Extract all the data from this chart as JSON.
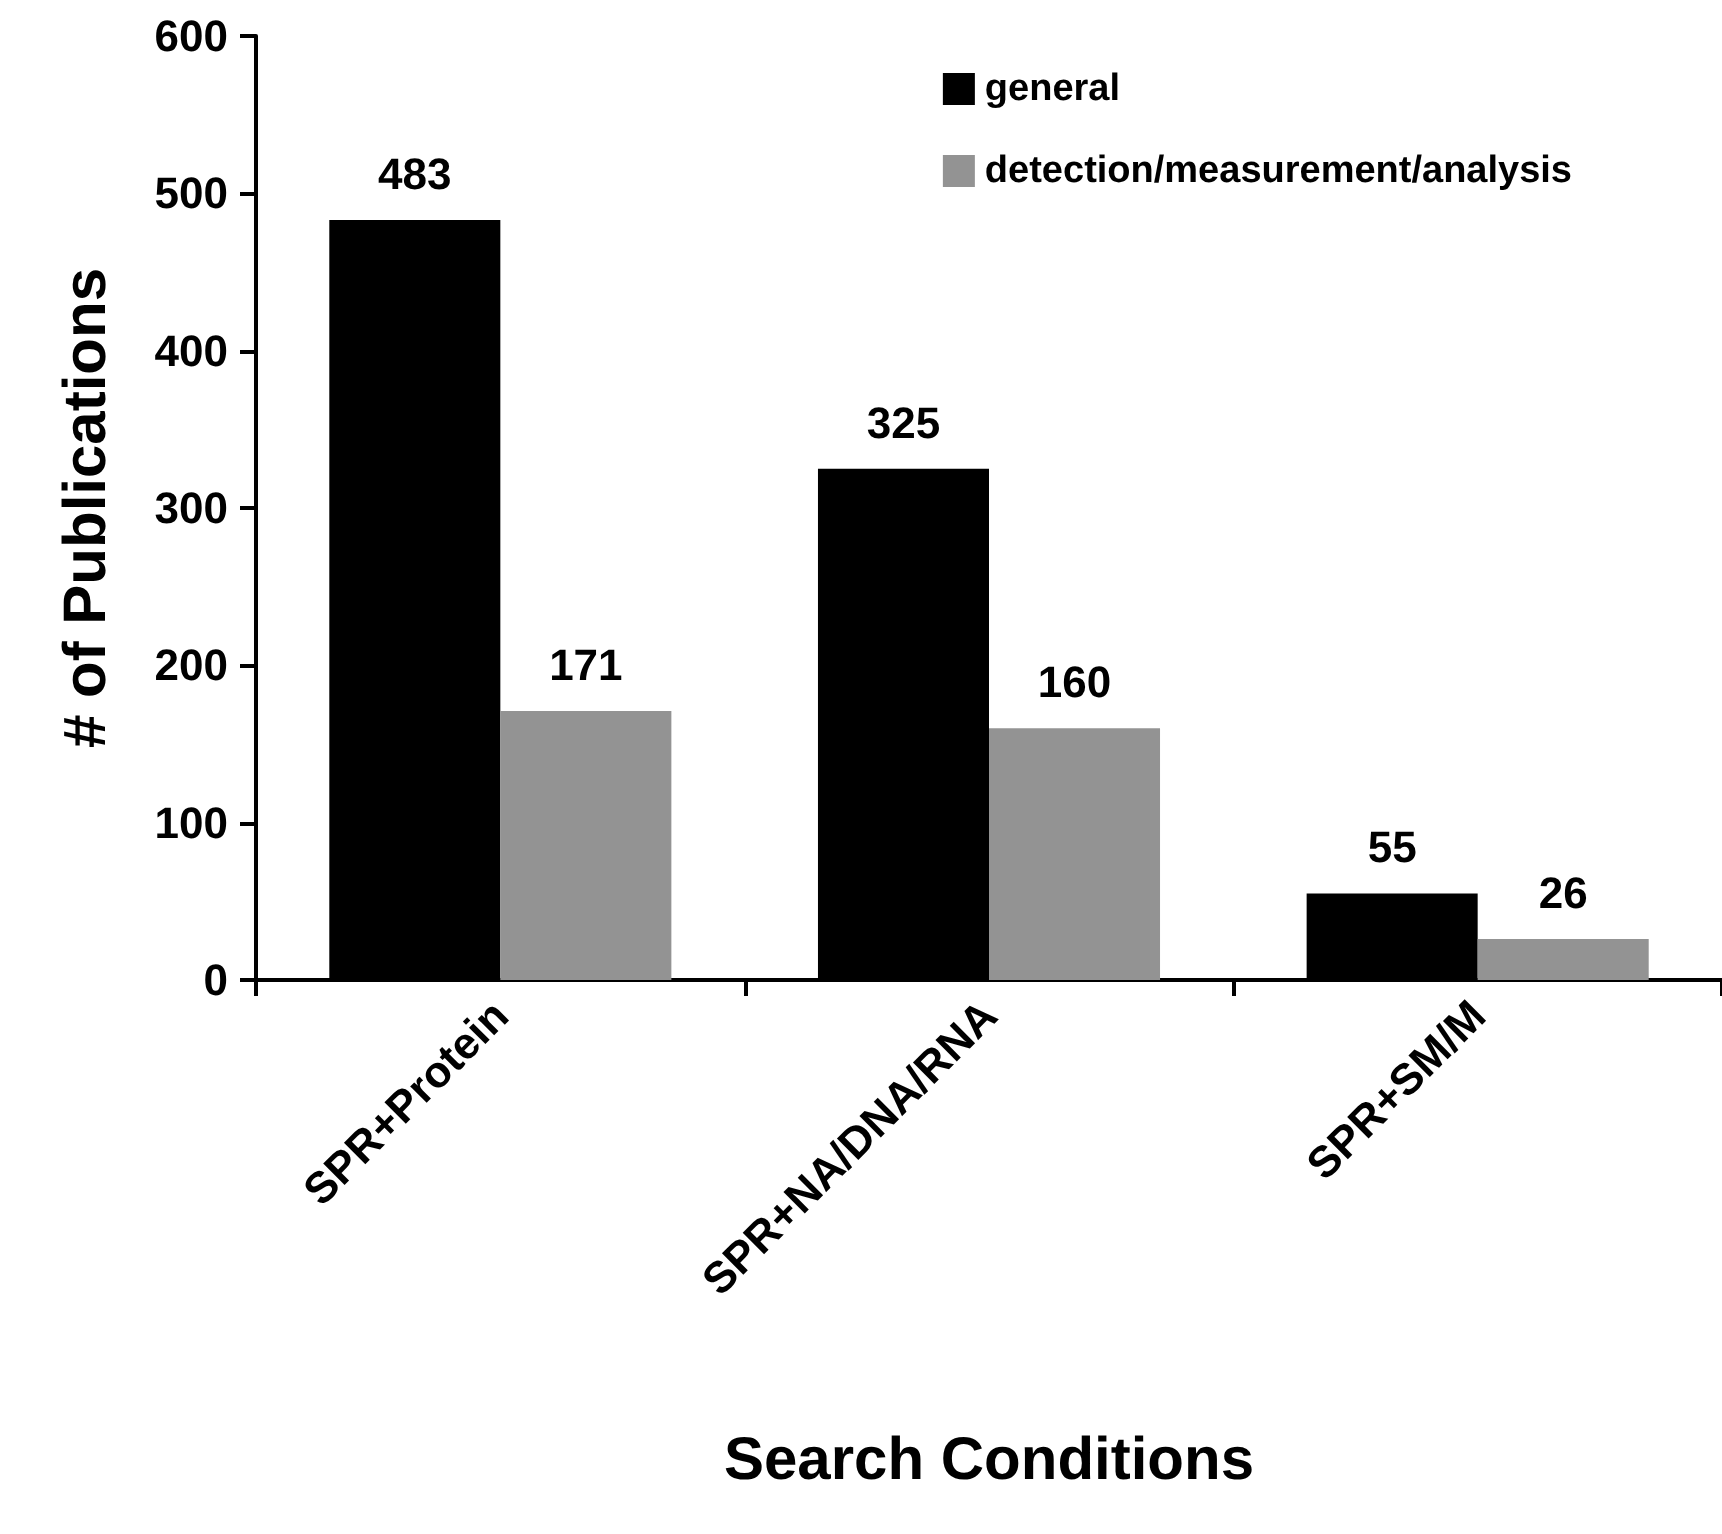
{
  "chart_data": {
    "type": "bar",
    "xlabel": "Search Conditions",
    "ylabel": "# of Publications",
    "categories": [
      "SPR+Protein",
      "SPR+NA/DNA/RNA",
      "SPR+SM/M"
    ],
    "series": [
      {
        "name": "general",
        "color": "#000000",
        "values": [
          483,
          325,
          55
        ]
      },
      {
        "name": "detection/measurement/analysis",
        "color": "#939393",
        "values": [
          171,
          160,
          26
        ]
      }
    ],
    "ylim": [
      0,
      600
    ],
    "yticks": [
      0,
      100,
      200,
      300,
      400,
      500,
      600
    ],
    "grid": false,
    "legend": "top right",
    "data_labels": true
  }
}
